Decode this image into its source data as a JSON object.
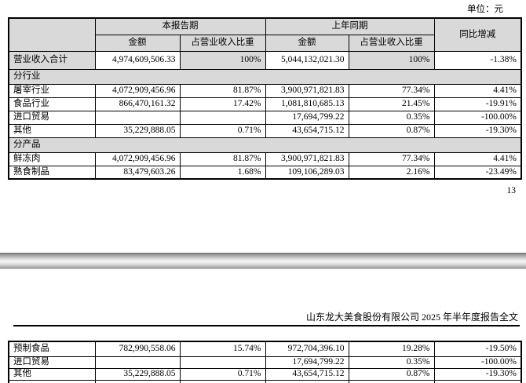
{
  "page": {
    "unit_label": "单位：元",
    "page_number": "13",
    "footer_title": "山东龙大美食股份有限公司 2025 年半年度报告全文"
  },
  "colors": {
    "table_shade": "#d9d9d9",
    "border": "#000000",
    "text": "#000000"
  },
  "revenue_table": {
    "headers": {
      "current_period": "本报告期",
      "prior_period": "上年同期",
      "yoy_change": "同比增减",
      "amount": "金额",
      "pct_of_revenue": "占营业收入比重"
    },
    "rows": [
      {
        "type": "total",
        "label": "营业收入合计",
        "cells": [
          "4,974,609,506.33",
          "100%",
          "5,044,132,021.30",
          "100%",
          "-1.38%"
        ]
      },
      {
        "type": "section",
        "label": "分行业"
      },
      {
        "type": "data",
        "label": "屠宰行业",
        "cells": [
          "4,072,909,456.96",
          "81.87%",
          "3,900,971,821.83",
          "77.34%",
          "4.41%"
        ]
      },
      {
        "type": "data",
        "label": "食品行业",
        "cells": [
          "866,470,161.32",
          "17.42%",
          "1,081,810,685.13",
          "21.45%",
          "-19.91%"
        ]
      },
      {
        "type": "data",
        "label": "进口贸易",
        "cells": [
          "",
          "",
          "17,694,799.22",
          "0.35%",
          "-100.00%"
        ]
      },
      {
        "type": "data",
        "label": "其他",
        "cells": [
          "35,229,888.05",
          "0.71%",
          "43,654,715.12",
          "0.87%",
          "-19.30%"
        ]
      },
      {
        "type": "section",
        "label": "分产品"
      },
      {
        "type": "data",
        "label": "鲜冻肉",
        "cells": [
          "4,072,909,456.96",
          "81.87%",
          "3,900,971,821.83",
          "77.34%",
          "4.41%"
        ]
      },
      {
        "type": "data",
        "label": "熟食制品",
        "cells": [
          "83,479,603.26",
          "1.68%",
          "109,106,289.03",
          "2.16%",
          "-23.49%"
        ]
      }
    ]
  },
  "continuation_table": {
    "rows": [
      {
        "type": "data",
        "label": "预制食品",
        "cells": [
          "782,990,558.06",
          "15.74%",
          "972,704,396.10",
          "19.28%",
          "-19.50%"
        ]
      },
      {
        "type": "data",
        "label": "进口贸易",
        "cells": [
          "",
          "",
          "17,694,799.22",
          "0.35%",
          "-100.00%"
        ]
      },
      {
        "type": "data",
        "label": "其他",
        "cells": [
          "35,229,888.05",
          "0.71%",
          "43,654,715.12",
          "0.87%",
          "-19.30%"
        ]
      },
      {
        "type": "partial",
        "label": "",
        "cells": [
          "",
          "",
          "",
          "",
          ""
        ]
      }
    ]
  }
}
